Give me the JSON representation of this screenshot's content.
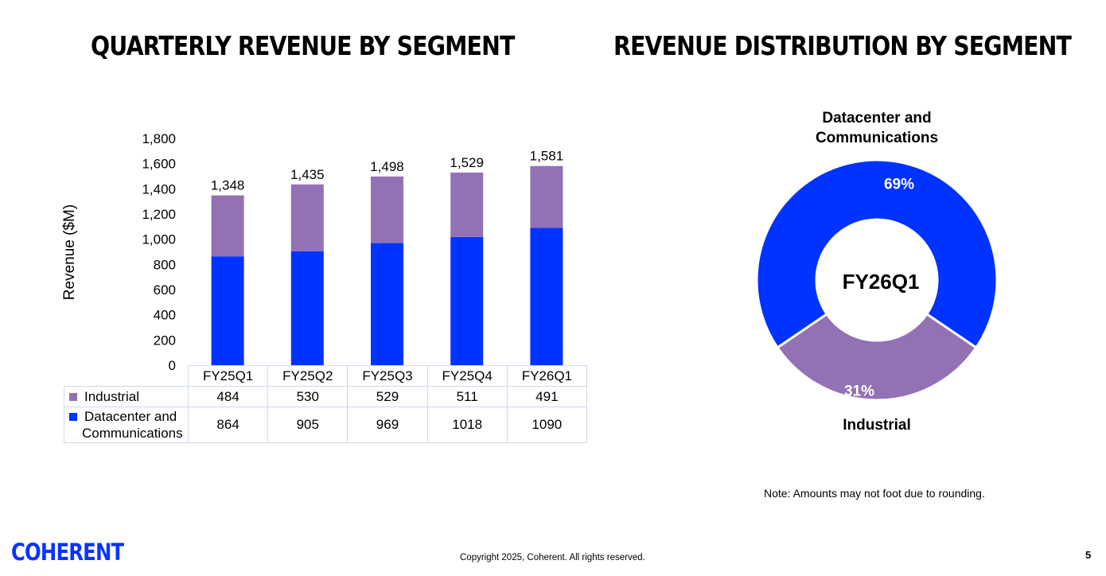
{
  "left_title": "QUARTERLY REVENUE BY SEGMENT",
  "right_title": "REVENUE DISTRIBUTION BY SEGMENT",
  "chart_data": [
    {
      "type": "bar",
      "stacked": true,
      "categories": [
        "FY25Q1",
        "FY25Q2",
        "FY25Q3",
        "FY25Q4",
        "FY26Q1"
      ],
      "series": [
        {
          "name": "Datacenter and Communications",
          "values": [
            864,
            905,
            969,
            1018,
            1090
          ],
          "color": "#0033ff"
        },
        {
          "name": "Industrial",
          "values": [
            484,
            530,
            529,
            511,
            491
          ],
          "color": "#9271b5"
        }
      ],
      "totals": [
        1348,
        1435,
        1498,
        1529,
        1581
      ],
      "total_labels": [
        "1,348",
        "1,435",
        "1,498",
        "1,529",
        "1,581"
      ],
      "ylabel": "Revenue ($M)",
      "ylim": [
        0,
        1800
      ],
      "yticks": [
        0,
        200,
        400,
        600,
        800,
        1000,
        1200,
        1400,
        1600,
        1800
      ],
      "ytick_labels": [
        "0",
        "200",
        "400",
        "600",
        "800",
        "1,000",
        "1,200",
        "1,400",
        "1,600",
        "1,800"
      ],
      "data_table": true
    },
    {
      "type": "pie",
      "donut": true,
      "center_label": "FY26Q1",
      "labels": [
        "Datacenter and Communications",
        "Industrial"
      ],
      "values": [
        69,
        31
      ],
      "value_labels": [
        "69%",
        "31%"
      ],
      "colors": [
        "#0033ff",
        "#9271b5"
      ]
    }
  ],
  "table": {
    "rows": [
      {
        "label": "Industrial",
        "values": [
          "484",
          "530",
          "529",
          "511",
          "491"
        ],
        "color": "#9271b5"
      },
      {
        "label_line1": "Datacenter and",
        "label_line2": "Communications",
        "values": [
          "864",
          "905",
          "969",
          "1018",
          "1090"
        ],
        "color": "#0033ff"
      }
    ]
  },
  "pie_labels": {
    "top_line1": "Datacenter and",
    "top_line2": "Communications",
    "bottom": "Industrial"
  },
  "note": "Note: Amounts may not foot due to rounding.",
  "footer": {
    "logo_text": "COHERENT",
    "copyright": "Copyright 2025, Coherent. All rights reserved.",
    "page_number": "5"
  }
}
